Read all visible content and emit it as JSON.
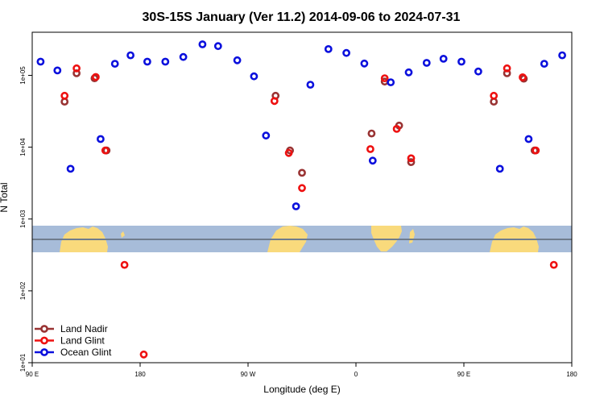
{
  "chart_data": {
    "type": "scatter",
    "title": "30S-15S January (Ver 11.2)   2014-09-06 to 2024-07-31",
    "xlabel": "Longitude (deg E)",
    "ylabel": "N Total",
    "xlim": [
      90,
      540
    ],
    "ylim_log10": [
      1,
      5.6
    ],
    "x_ticks": [
      {
        "value": 90,
        "label": "90 E"
      },
      {
        "value": 180,
        "label": "180"
      },
      {
        "value": 270,
        "label": "90 W"
      },
      {
        "value": 360,
        "label": "0"
      },
      {
        "value": 450,
        "label": "90 E"
      },
      {
        "value": 540,
        "label": "180"
      }
    ],
    "y_ticks": [
      {
        "value": 10,
        "label": "1e+01"
      },
      {
        "value": 100,
        "label": "1e+02"
      },
      {
        "value": 1000,
        "label": "1e+03"
      },
      {
        "value": 10000,
        "label": "1e+04"
      },
      {
        "value": 100000,
        "label": "1e+05"
      }
    ],
    "map_band": {
      "ylim_log10": [
        2.64,
        2.99
      ],
      "equator_log10": 2.81,
      "water_color": "#a7bcd9",
      "land_color": "#f9da7c",
      "line_color": "#6f7c8c"
    },
    "legend": {
      "position": "bottom-left"
    },
    "series": [
      {
        "name": "Land Nadir",
        "color": "#993333",
        "points": [
          {
            "x": 117,
            "y": 43000
          },
          {
            "x": 127,
            "y": 107000
          },
          {
            "x": 142,
            "y": 91000
          },
          {
            "x": 152,
            "y": 9000
          },
          {
            "x": 293,
            "y": 52000
          },
          {
            "x": 305,
            "y": 9000
          },
          {
            "x": 315,
            "y": 4400
          },
          {
            "x": 373,
            "y": 15500
          },
          {
            "x": 384,
            "y": 82000
          },
          {
            "x": 396,
            "y": 20000
          },
          {
            "x": 406,
            "y": 6200
          },
          {
            "x": 475,
            "y": 43000
          },
          {
            "x": 486,
            "y": 107000
          },
          {
            "x": 500,
            "y": 90000
          },
          {
            "x": 509,
            "y": 9000
          }
        ]
      },
      {
        "name": "Land Glint",
        "color": "#ee1111",
        "points": [
          {
            "x": 117,
            "y": 52000
          },
          {
            "x": 127,
            "y": 125000
          },
          {
            "x": 143,
            "y": 95000
          },
          {
            "x": 151,
            "y": 9000
          },
          {
            "x": 167,
            "y": 230
          },
          {
            "x": 183,
            "y": 13
          },
          {
            "x": 292,
            "y": 44000
          },
          {
            "x": 304,
            "y": 8300
          },
          {
            "x": 315,
            "y": 2700
          },
          {
            "x": 372,
            "y": 9400
          },
          {
            "x": 384,
            "y": 91000
          },
          {
            "x": 394,
            "y": 18000
          },
          {
            "x": 406,
            "y": 7000
          },
          {
            "x": 475,
            "y": 52000
          },
          {
            "x": 486,
            "y": 125000
          },
          {
            "x": 499,
            "y": 94000
          },
          {
            "x": 510,
            "y": 9000
          },
          {
            "x": 525,
            "y": 230
          }
        ]
      },
      {
        "name": "Ocean Glint",
        "color": "#0b10dd",
        "points": [
          {
            "x": 97,
            "y": 155000
          },
          {
            "x": 111,
            "y": 117000
          },
          {
            "x": 122,
            "y": 5000
          },
          {
            "x": 147,
            "y": 13000
          },
          {
            "x": 159,
            "y": 145000
          },
          {
            "x": 172,
            "y": 190000
          },
          {
            "x": 186,
            "y": 155000
          },
          {
            "x": 201,
            "y": 155000
          },
          {
            "x": 216,
            "y": 180000
          },
          {
            "x": 232,
            "y": 270000
          },
          {
            "x": 245,
            "y": 255000
          },
          {
            "x": 261,
            "y": 162000
          },
          {
            "x": 275,
            "y": 97000
          },
          {
            "x": 285,
            "y": 14500
          },
          {
            "x": 310,
            "y": 1500
          },
          {
            "x": 322,
            "y": 74000
          },
          {
            "x": 337,
            "y": 232000
          },
          {
            "x": 352,
            "y": 205000
          },
          {
            "x": 367,
            "y": 146000
          },
          {
            "x": 374,
            "y": 6500
          },
          {
            "x": 389,
            "y": 80000
          },
          {
            "x": 404,
            "y": 110000
          },
          {
            "x": 419,
            "y": 149000
          },
          {
            "x": 433,
            "y": 170000
          },
          {
            "x": 448,
            "y": 155000
          },
          {
            "x": 462,
            "y": 113000
          },
          {
            "x": 480,
            "y": 5000
          },
          {
            "x": 504,
            "y": 13000
          },
          {
            "x": 517,
            "y": 145000
          },
          {
            "x": 532,
            "y": 190000
          }
        ]
      }
    ]
  }
}
